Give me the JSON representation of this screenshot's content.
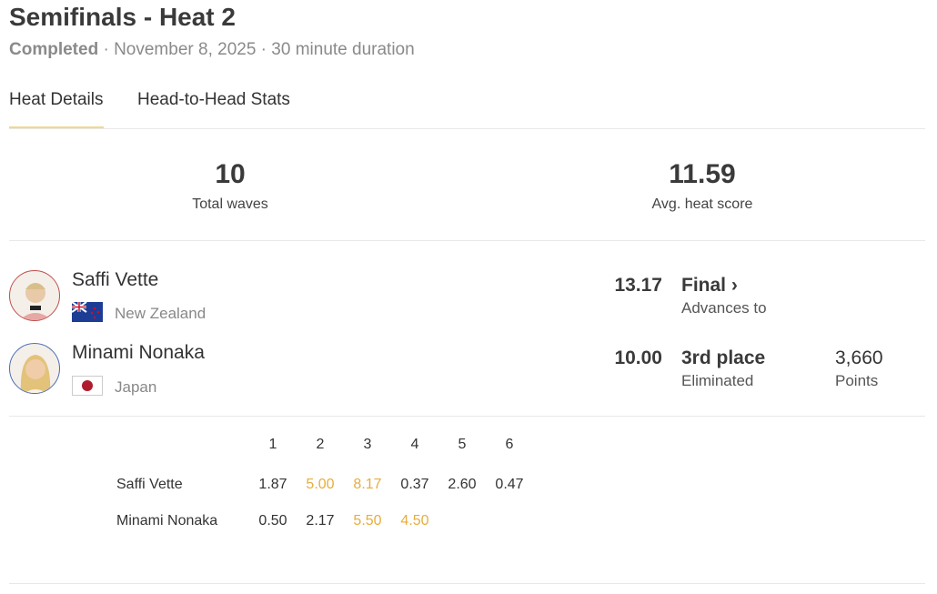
{
  "header": {
    "title": "Semifinals - Heat 2",
    "status": "Completed",
    "date": "November 8, 2025",
    "duration": "30 minute duration"
  },
  "tabs": [
    {
      "label": "Heat Details",
      "active": true
    },
    {
      "label": "Head-to-Head Stats",
      "active": false
    }
  ],
  "stats": {
    "total_waves": "10",
    "total_waves_label": "Total waves",
    "avg_score": "11.59",
    "avg_score_label": "Avg. heat score"
  },
  "athletes": [
    {
      "name": "Saffi Vette",
      "country": "New Zealand",
      "score": "13.17",
      "result": "Final ›",
      "result_sub": "Advances to",
      "ring_color": "#c0504d"
    },
    {
      "name": "Minami Nonaka",
      "country": "Japan",
      "score": "10.00",
      "result": "3rd place",
      "result_sub": "Eliminated",
      "points": "3,660",
      "points_label": "Points",
      "ring_color": "#4a6db5"
    }
  ],
  "waves": {
    "headers": [
      "1",
      "2",
      "3",
      "4",
      "5",
      "6"
    ],
    "rows": [
      {
        "name": "Saffi Vette",
        "scores": [
          "1.87",
          "5.00",
          "8.17",
          "0.37",
          "2.60",
          "0.47"
        ],
        "counted": [
          false,
          true,
          true,
          false,
          false,
          false
        ]
      },
      {
        "name": "Minami Nonaka",
        "scores": [
          "0.50",
          "2.17",
          "5.50",
          "4.50"
        ],
        "counted": [
          false,
          false,
          true,
          true
        ]
      }
    ]
  },
  "colors": {
    "accent": "#e7ad3e",
    "tab_underline": "#f2d98a"
  }
}
